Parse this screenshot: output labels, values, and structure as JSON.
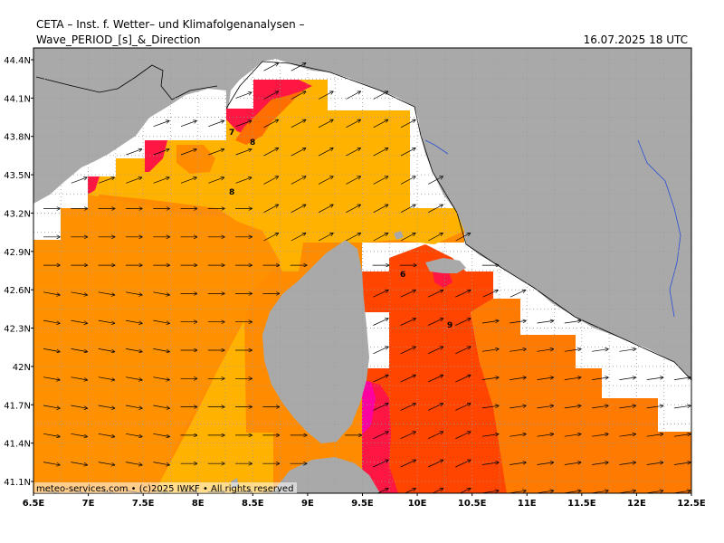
{
  "header": {
    "institute": "CETA – Inst. f. Wetter– und Klimafolgenanalysen –",
    "product": "Wave_PERIOD_[s]_&_Direction",
    "timestamp": "16.07.2025 18 UTC"
  },
  "axes": {
    "lon_labels": [
      "6.5E",
      "7E",
      "7.5E",
      "8E",
      "8.5E",
      "9E",
      "9.5E",
      "10E",
      "10.5E",
      "11E",
      "11.5E",
      "12E",
      "12.5E"
    ],
    "lat_labels": [
      "44.4N",
      "44.1N",
      "43.8N",
      "43.5N",
      "43.2N",
      "42.9N",
      "42.6N",
      "42.3N",
      "42N",
      "41.7N",
      "41.4N",
      "41.1N"
    ]
  },
  "contour_labels": [
    "7",
    "8",
    "8",
    "6",
    "9"
  ],
  "footer": {
    "credit": "meteo-services.com • (c)2025 IWKF • All rights reserved"
  },
  "colors": {
    "land": "#a9a9a9",
    "sea_no_data": "#ffffff",
    "period_7": "#f5a623",
    "period_8": "#ffb300",
    "period_8_5": "#ff8c00",
    "period_9": "#ff6f00",
    "period_9_5": "#ff4500",
    "period_10": "#ff1744",
    "period_high": "#ff00a0",
    "rivers": "#2a4fd6",
    "grid": "#9a9a9a"
  }
}
